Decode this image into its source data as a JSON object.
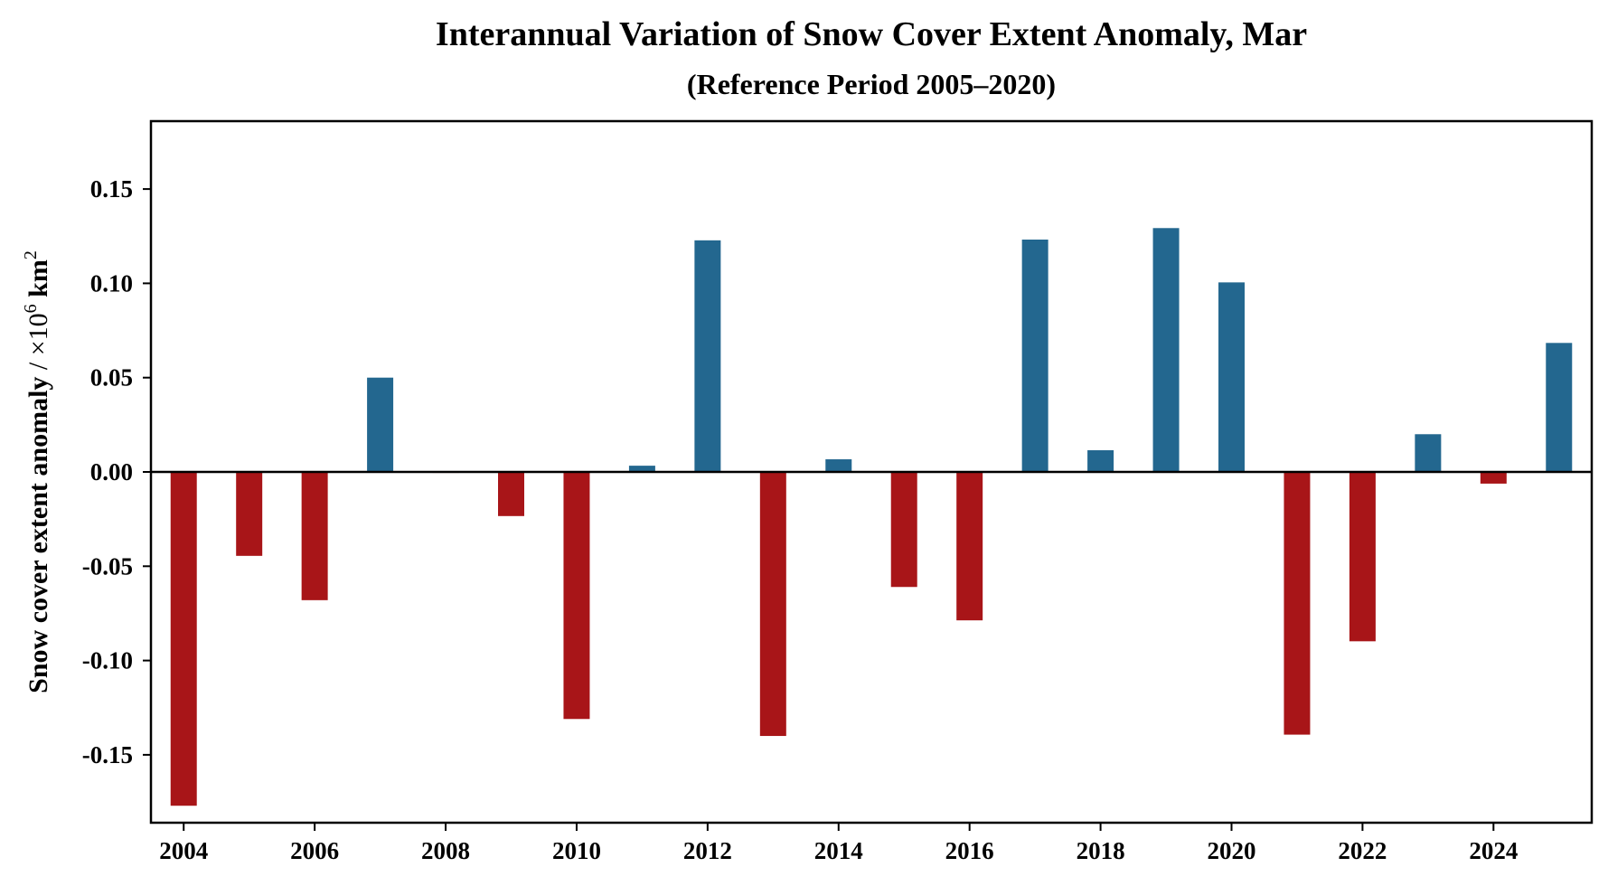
{
  "chart_data": {
    "type": "bar",
    "title": "Interannual Variation of Snow Cover Extent Anomaly, Mar",
    "subtitle": "(Reference Period 2005–2020)",
    "xlabel": "",
    "ylabel": {
      "main": "Snow cover extent anomaly",
      "unit_prefix": " / ×10",
      "unit_exp": "6",
      "unit_main": " km",
      "unit_exp2": "2"
    },
    "categories": [
      2004,
      2005,
      2006,
      2007,
      2008,
      2009,
      2010,
      2011,
      2012,
      2013,
      2014,
      2015,
      2016,
      2017,
      2018,
      2019,
      2020,
      2021,
      2022,
      2023,
      2024,
      2025
    ],
    "values": [
      -0.177,
      -0.0445,
      -0.068,
      0.05,
      -0.0005,
      -0.0234,
      -0.131,
      0.0033,
      0.1228,
      -0.14,
      0.0067,
      -0.061,
      -0.0787,
      0.1232,
      0.0115,
      0.1293,
      0.1005,
      -0.1393,
      -0.0898,
      0.02,
      -0.0062,
      0.0684
    ],
    "colors": {
      "positive": "#23678F",
      "negative": "#A81518",
      "axis": "#000000"
    },
    "xlim": [
      2003.5,
      2025.5
    ],
    "ylim": [
      -0.186,
      0.186
    ],
    "xticks": [
      2004,
      2006,
      2008,
      2010,
      2012,
      2014,
      2016,
      2018,
      2020,
      2022,
      2024
    ],
    "xtick_labels": [
      "2004",
      "2006",
      "2008",
      "2010",
      "2012",
      "2014",
      "2016",
      "2018",
      "2020",
      "2022",
      "2024"
    ],
    "yticks": [
      0.15,
      0.1,
      0.05,
      0.0,
      -0.05,
      -0.1,
      -0.15
    ],
    "ytick_labels": [
      "0.15",
      "0.10",
      "0.05",
      "0.00",
      "-0.05",
      "-0.10",
      "-0.15"
    ],
    "bar_width_years": 0.4,
    "zero_line": true,
    "grid": false,
    "legend": null
  }
}
